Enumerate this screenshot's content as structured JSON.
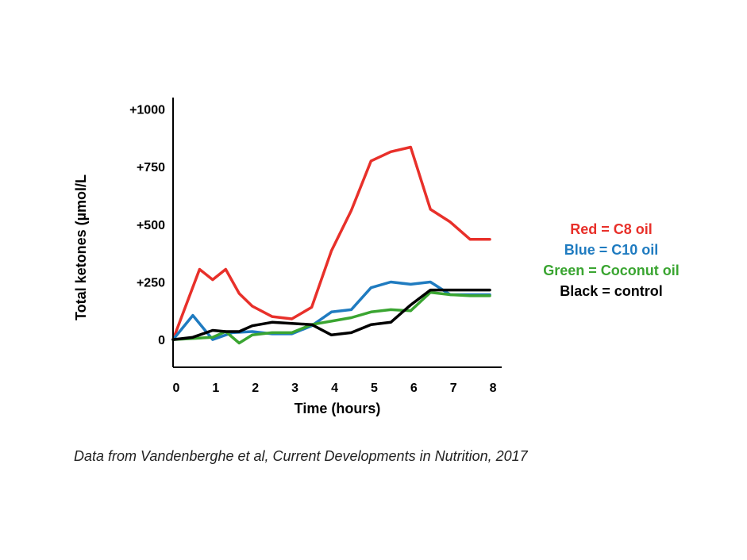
{
  "chart_data": {
    "type": "line",
    "xlabel": "Time (hours)",
    "ylabel": "Total ketones (µmol/L",
    "xlim": [
      0,
      8.3
    ],
    "ylim": [
      -120,
      1050
    ],
    "x_ticks": [
      0,
      1,
      2,
      3,
      4,
      5,
      6,
      7,
      8
    ],
    "x_tick_labels": [
      "0",
      "1",
      "2",
      "3",
      "4",
      "5",
      "6",
      "7",
      "8"
    ],
    "y_ticks": [
      0,
      250,
      500,
      750,
      1000
    ],
    "y_tick_labels": [
      "0",
      "+250",
      "+500",
      "+750",
      "+1000"
    ],
    "grid": false,
    "legend_position": "right",
    "series": [
      {
        "name": "Red = C8 oil",
        "color": "#e8302a",
        "x": [
          0,
          0.67,
          1,
          1.33,
          1.67,
          2,
          2.5,
          3,
          3.5,
          4,
          4.5,
          5,
          5.5,
          6,
          6.5,
          7,
          7.5,
          8
        ],
        "y": [
          0,
          305,
          260,
          305,
          200,
          145,
          100,
          90,
          140,
          385,
          560,
          775,
          815,
          835,
          565,
          510,
          435,
          435
        ]
      },
      {
        "name": "Blue = C10 oil",
        "color": "#1f7bc0",
        "x": [
          0,
          0.5,
          1,
          1.5,
          2,
          2.5,
          3,
          3.5,
          4,
          4.5,
          5,
          5.5,
          6,
          6.5,
          7,
          7.5,
          8
        ],
        "y": [
          0,
          105,
          0,
          30,
          35,
          25,
          25,
          60,
          120,
          130,
          225,
          250,
          240,
          250,
          195,
          195,
          195
        ]
      },
      {
        "name": "Green = Coconut oil",
        "color": "#3aa531",
        "x": [
          0,
          0.5,
          1,
          1.33,
          1.67,
          2,
          2.5,
          3,
          3.5,
          4,
          4.5,
          5,
          5.5,
          6,
          6.5,
          7,
          7.5,
          8
        ],
        "y": [
          0,
          5,
          10,
          35,
          -15,
          20,
          30,
          30,
          65,
          80,
          95,
          120,
          130,
          125,
          205,
          195,
          190,
          190
        ]
      },
      {
        "name": "Black = control",
        "color": "#000000",
        "x": [
          0,
          0.5,
          1,
          1.33,
          1.67,
          2,
          2.5,
          3,
          3.5,
          4,
          4.5,
          5,
          5.5,
          6,
          6.5,
          7,
          7.5,
          8
        ],
        "y": [
          0,
          10,
          40,
          35,
          35,
          60,
          75,
          70,
          65,
          20,
          30,
          65,
          75,
          150,
          215,
          215,
          215,
          215
        ]
      }
    ]
  },
  "source_note": "Data from Vandenberghe et al, Current Developments in Nutrition, 2017"
}
